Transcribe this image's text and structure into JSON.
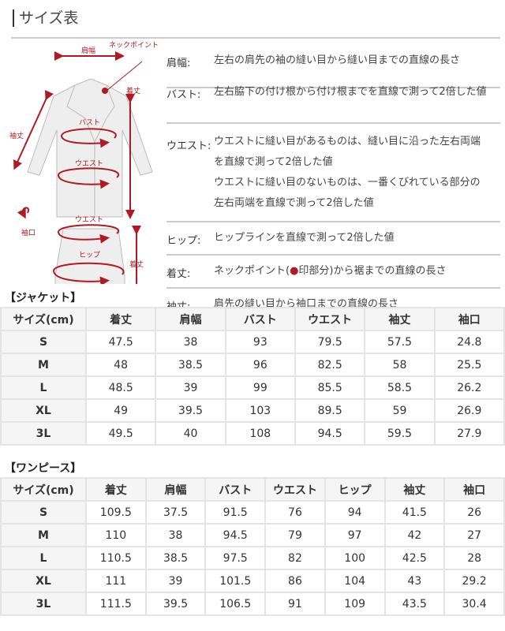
{
  "title": "サイズ表",
  "diagram_labels": {
    "shoulder": "肩幅",
    "neck_point": "ネックポイント",
    "length_top": "着丈",
    "sleeve": "袖丈",
    "bust": "バスト",
    "waist_top": "ウエスト",
    "cuff": "袖口",
    "waist_bottom": "ウエスト",
    "hip": "ヒップ",
    "length_bottom": "着丈"
  },
  "accent_color": "#b01a24",
  "descriptions": [
    {
      "label": "肩幅:",
      "lines": [
        "左右の肩先の袖の縫い目から縫い目までの直線の長さ"
      ]
    },
    {
      "label": "バスト:",
      "lines": [
        "左右脇下の付け根から付け根までを直線で測って2倍した値"
      ]
    },
    {
      "label": "ウエスト:",
      "lines": [
        "ウエストに縫い目があるものは、縫い目に沿った左右両端",
        "を直線で測って2倍した値",
        "ウエストに縫い目のないものは、一番くびれている部分の",
        "左右両端を直線で測って2倍した値"
      ]
    },
    {
      "label": "ヒップ:",
      "lines": [
        "ヒップラインを直線で測って2倍した値"
      ]
    },
    {
      "label": "着丈:",
      "lines": [
        "ネックポイント(",
        "●",
        "印部分)から裾までの直線の長さ"
      ]
    },
    {
      "label": "袖丈:",
      "lines": [
        "肩先の縫い目から袖口までの直線の長さ"
      ]
    }
  ],
  "jacket": {
    "title": "【ジャケット】",
    "headers": [
      "サイズ(cm)",
      "着丈",
      "肩幅",
      "バスト",
      "ウエスト",
      "袖丈",
      "袖口"
    ],
    "rows": [
      [
        "S",
        "47.5",
        "38",
        "93",
        "79.5",
        "57.5",
        "24.8"
      ],
      [
        "M",
        "48",
        "38.5",
        "96",
        "82.5",
        "58",
        "25.5"
      ],
      [
        "L",
        "48.5",
        "39",
        "99",
        "85.5",
        "58.5",
        "26.2"
      ],
      [
        "XL",
        "49",
        "39.5",
        "103",
        "89.5",
        "59",
        "26.9"
      ],
      [
        "3L",
        "49.5",
        "40",
        "108",
        "94.5",
        "59.5",
        "27.9"
      ]
    ]
  },
  "onepiece": {
    "title": "【ワンピース】",
    "headers": [
      "サイズ(cm)",
      "着丈",
      "肩幅",
      "バスト",
      "ウエスト",
      "ヒップ",
      "袖丈",
      "袖口"
    ],
    "rows": [
      [
        "S",
        "109.5",
        "37.5",
        "91.5",
        "76",
        "94",
        "41.5",
        "26"
      ],
      [
        "M",
        "110",
        "38",
        "94.5",
        "79",
        "97",
        "42",
        "27"
      ],
      [
        "L",
        "110.5",
        "38.5",
        "97.5",
        "82",
        "100",
        "42.5",
        "28"
      ],
      [
        "XL",
        "111",
        "39",
        "101.5",
        "86",
        "104",
        "43",
        "29.2"
      ],
      [
        "3L",
        "111.5",
        "39.5",
        "106.5",
        "91",
        "109",
        "43.5",
        "30.4"
      ]
    ]
  }
}
